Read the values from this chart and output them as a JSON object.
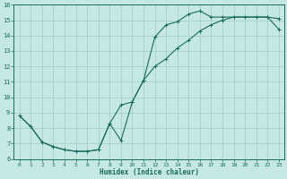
{
  "xlabel": "Humidex (Indice chaleur)",
  "xlim": [
    -0.5,
    23.5
  ],
  "ylim": [
    6,
    16
  ],
  "xticks": [
    0,
    1,
    2,
    3,
    4,
    5,
    6,
    7,
    8,
    9,
    10,
    11,
    12,
    13,
    14,
    15,
    16,
    17,
    18,
    19,
    20,
    21,
    22,
    23
  ],
  "yticks": [
    6,
    7,
    8,
    9,
    10,
    11,
    12,
    13,
    14,
    15,
    16
  ],
  "bg_color": "#c5e8e2",
  "grid_color": "#9ecec6",
  "line_color": "#1a6b5e",
  "line1_x": [
    0,
    1,
    2,
    3,
    4,
    5,
    6,
    7,
    8,
    9,
    10,
    11,
    12,
    13,
    14,
    15,
    16,
    17,
    18,
    19,
    20,
    21,
    22,
    23
  ],
  "line1_y": [
    8.8,
    8.1,
    7.1,
    6.8,
    6.6,
    6.5,
    6.5,
    6.6,
    8.3,
    9.5,
    9.7,
    11.1,
    12.0,
    12.5,
    13.2,
    13.7,
    14.3,
    14.7,
    15.0,
    15.2,
    15.2,
    15.2,
    15.2,
    14.4
  ],
  "line2_x": [
    0,
    1,
    2,
    3,
    4,
    5,
    6,
    7,
    8,
    9,
    10,
    11,
    12,
    13,
    14,
    15,
    16,
    17,
    18,
    19,
    20,
    21,
    22,
    23
  ],
  "line2_y": [
    8.8,
    8.1,
    7.1,
    6.8,
    6.6,
    6.5,
    6.5,
    6.6,
    8.3,
    7.2,
    9.7,
    11.1,
    13.9,
    14.7,
    14.9,
    15.4,
    15.6,
    15.2,
    15.2,
    15.2,
    15.2,
    15.2,
    15.2,
    15.1
  ]
}
